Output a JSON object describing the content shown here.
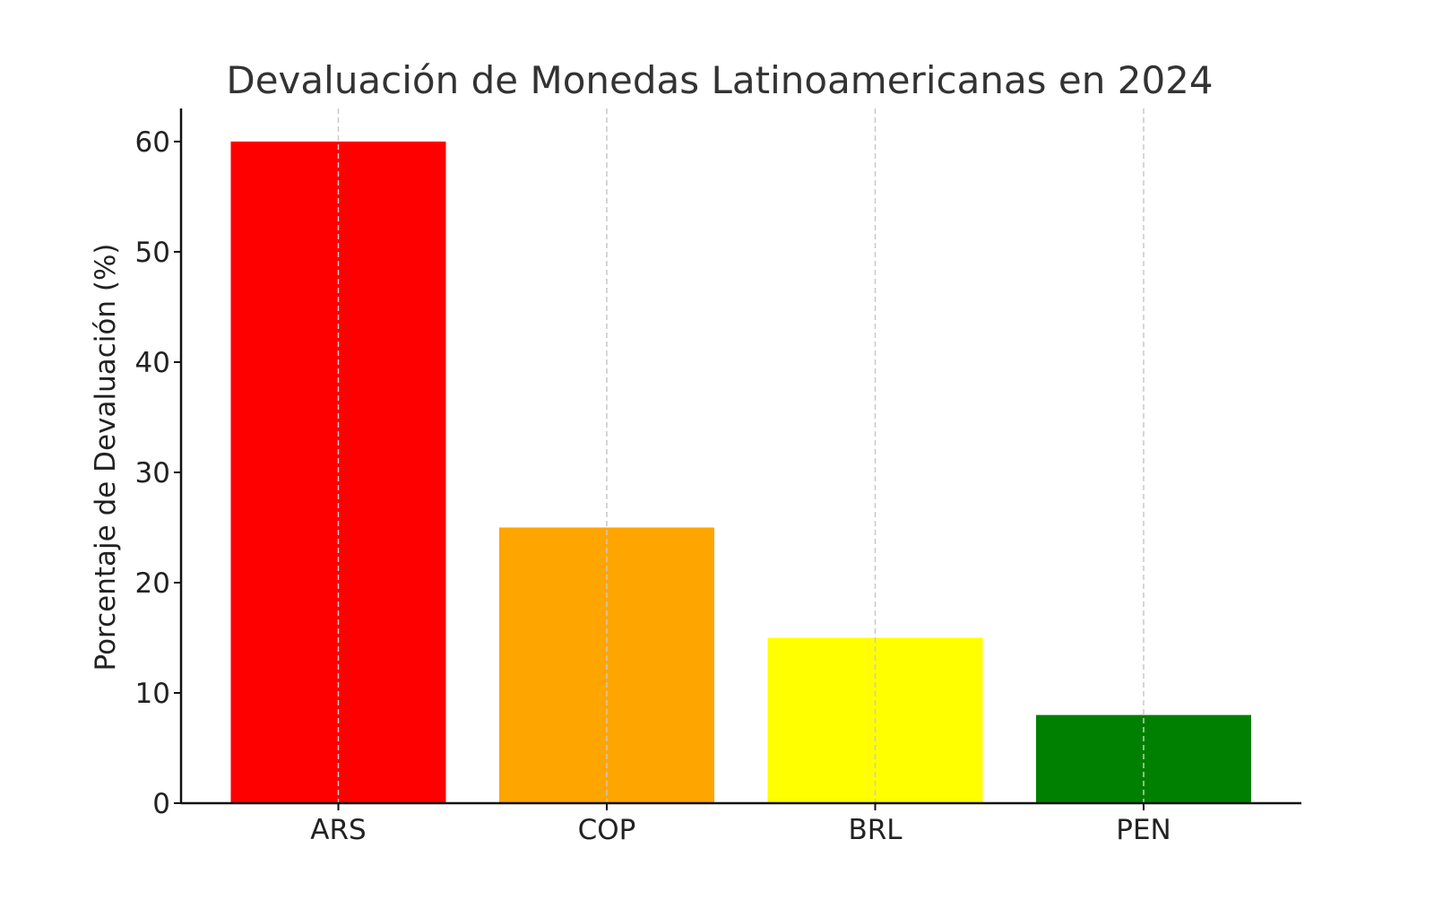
{
  "chart_data": {
    "type": "bar",
    "title": "Devaluación de Monedas Latinoamericanas en 2024",
    "xlabel": "",
    "ylabel": "Porcentaje de Devaluación (%)",
    "categories": [
      "ARS",
      "COP",
      "BRL",
      "PEN"
    ],
    "values": [
      60,
      25,
      15,
      8
    ],
    "colors": [
      "#ff0000",
      "#ffa500",
      "#ffff00",
      "#008000"
    ],
    "ylim": [
      0,
      63
    ],
    "yticks": [
      0,
      10,
      20,
      30,
      40,
      50,
      60
    ],
    "grid": "vertical dashed",
    "legend": "none"
  }
}
